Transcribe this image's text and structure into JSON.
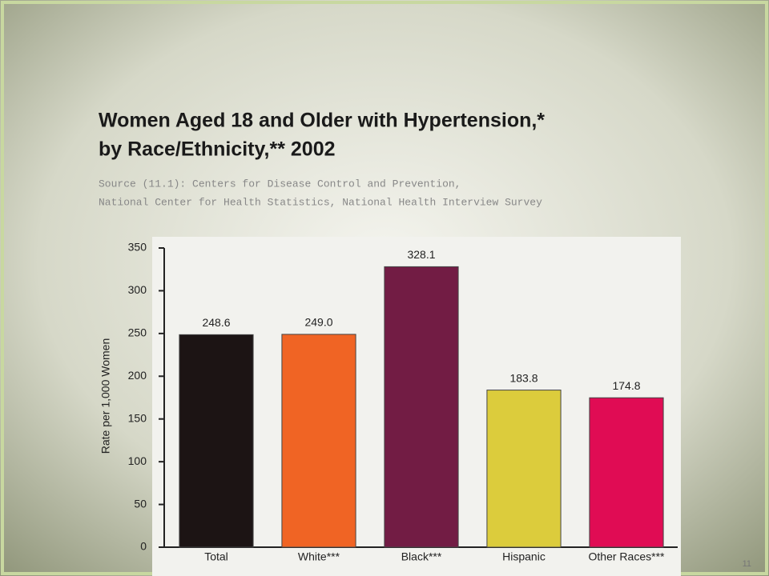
{
  "chart_data": {
    "type": "bar",
    "title": [
      "Women Aged 18 and Older with Hypertension,*",
      "by Race/Ethnicity,** 2002"
    ],
    "subtitle": [
      "Source (11.1): Centers for Disease Control and Prevention,",
      "National Center for Health Statistics, National Health Interview Survey"
    ],
    "y_label": "Rate per 1,000 Women",
    "categories": [
      "Total",
      "White***",
      "Black***",
      "Hispanic",
      "Other Races***"
    ],
    "values": [
      248.6,
      249.0,
      328.1,
      183.8,
      174.8
    ],
    "value_labels": [
      "248.6",
      "249.0",
      "328.1",
      "183.8",
      "174.8"
    ],
    "colors": [
      "#1c1414",
      "#f06424",
      "#721c44",
      "#dccc3c",
      "#e00c54"
    ],
    "ylim": [
      0,
      350
    ],
    "yticks": [
      0,
      50,
      100,
      150,
      200,
      250,
      300,
      350
    ]
  },
  "page_number": "11"
}
